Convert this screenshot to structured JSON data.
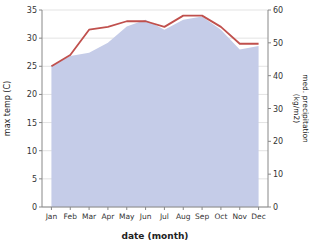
{
  "chart_data": {
    "type": "line",
    "xlabel": "date (month)",
    "ylabel": "max temp (C)",
    "y2label": "med. precipitation\n(kg/m2)",
    "categories": [
      "Jan",
      "Feb",
      "Mar",
      "Apr",
      "May",
      "Jun",
      "Jul",
      "Aug",
      "Sep",
      "Oct",
      "Nov",
      "Dec"
    ],
    "series": [
      {
        "type": "area",
        "axis": "y2",
        "color": "#c5cce8",
        "values": [
          43,
          46,
          47,
          50,
          55,
          57,
          54,
          57,
          58,
          54,
          48,
          49
        ]
      },
      {
        "type": "line",
        "color": "#c0504d",
        "values": [
          25,
          27,
          31.5,
          32,
          33,
          33,
          32,
          34,
          34,
          32,
          29,
          29
        ]
      }
    ],
    "ylim": [
      0,
      35
    ],
    "yticks": [
      0,
      5,
      10,
      15,
      20,
      25,
      30,
      35
    ],
    "y2lim": [
      0,
      60
    ],
    "y2ticks": [
      0,
      10,
      20,
      30,
      40,
      50,
      60
    ],
    "grid": true
  }
}
